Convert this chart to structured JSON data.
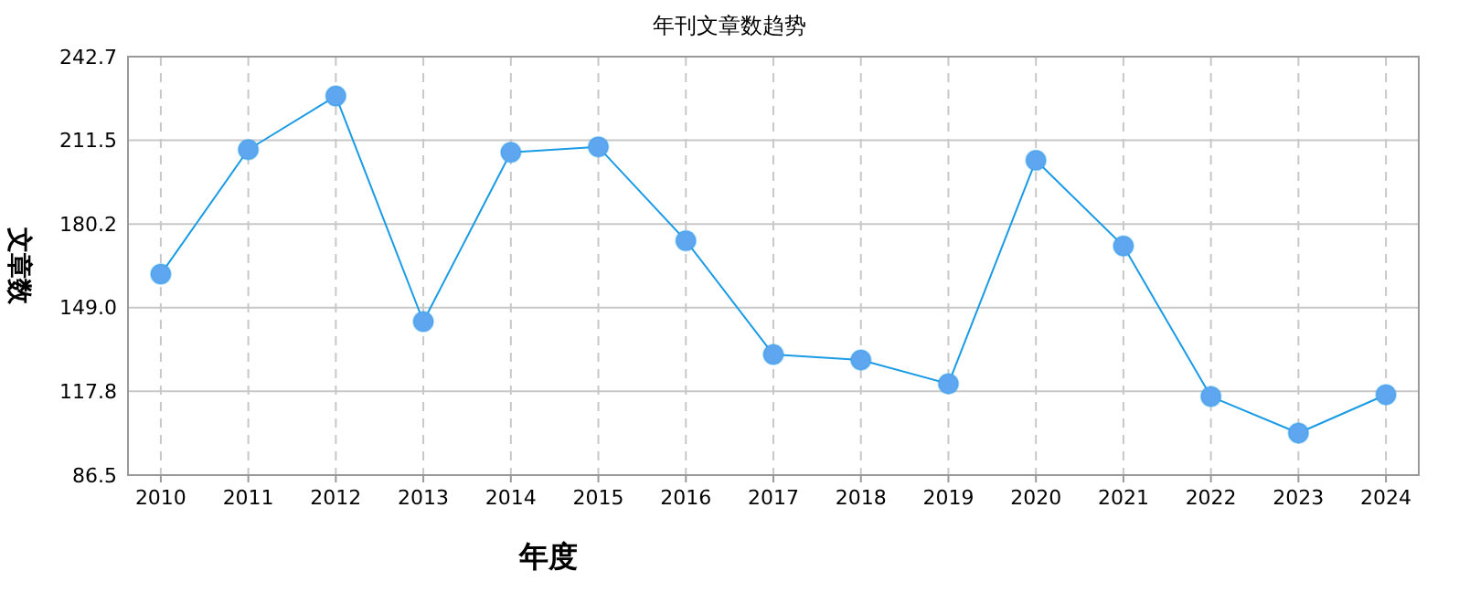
{
  "chart_data": {
    "type": "line",
    "title": "年刊文章数趋势",
    "xlabel": "年度",
    "ylabel": "文章数",
    "categories": [
      "2010",
      "2011",
      "2012",
      "2013",
      "2014",
      "2015",
      "2016",
      "2017",
      "2018",
      "2019",
      "2020",
      "2021",
      "2022",
      "2023",
      "2024"
    ],
    "series": [
      {
        "color": "#1a9be6",
        "values": [
          161.5,
          208,
          228,
          143.8,
          207,
          209,
          174,
          131.5,
          129.5,
          120.6,
          204,
          172,
          115.8,
          102.2,
          116.5
        ]
      }
    ],
    "ylim": [
      86.5,
      242.7
    ],
    "yticks": [
      86.5,
      117.8,
      {
        "value": 149,
        "label": "149.0"
      },
      180.2,
      211.5,
      242.7
    ],
    "grid": true,
    "marker": "circle",
    "line_style": "solid"
  }
}
